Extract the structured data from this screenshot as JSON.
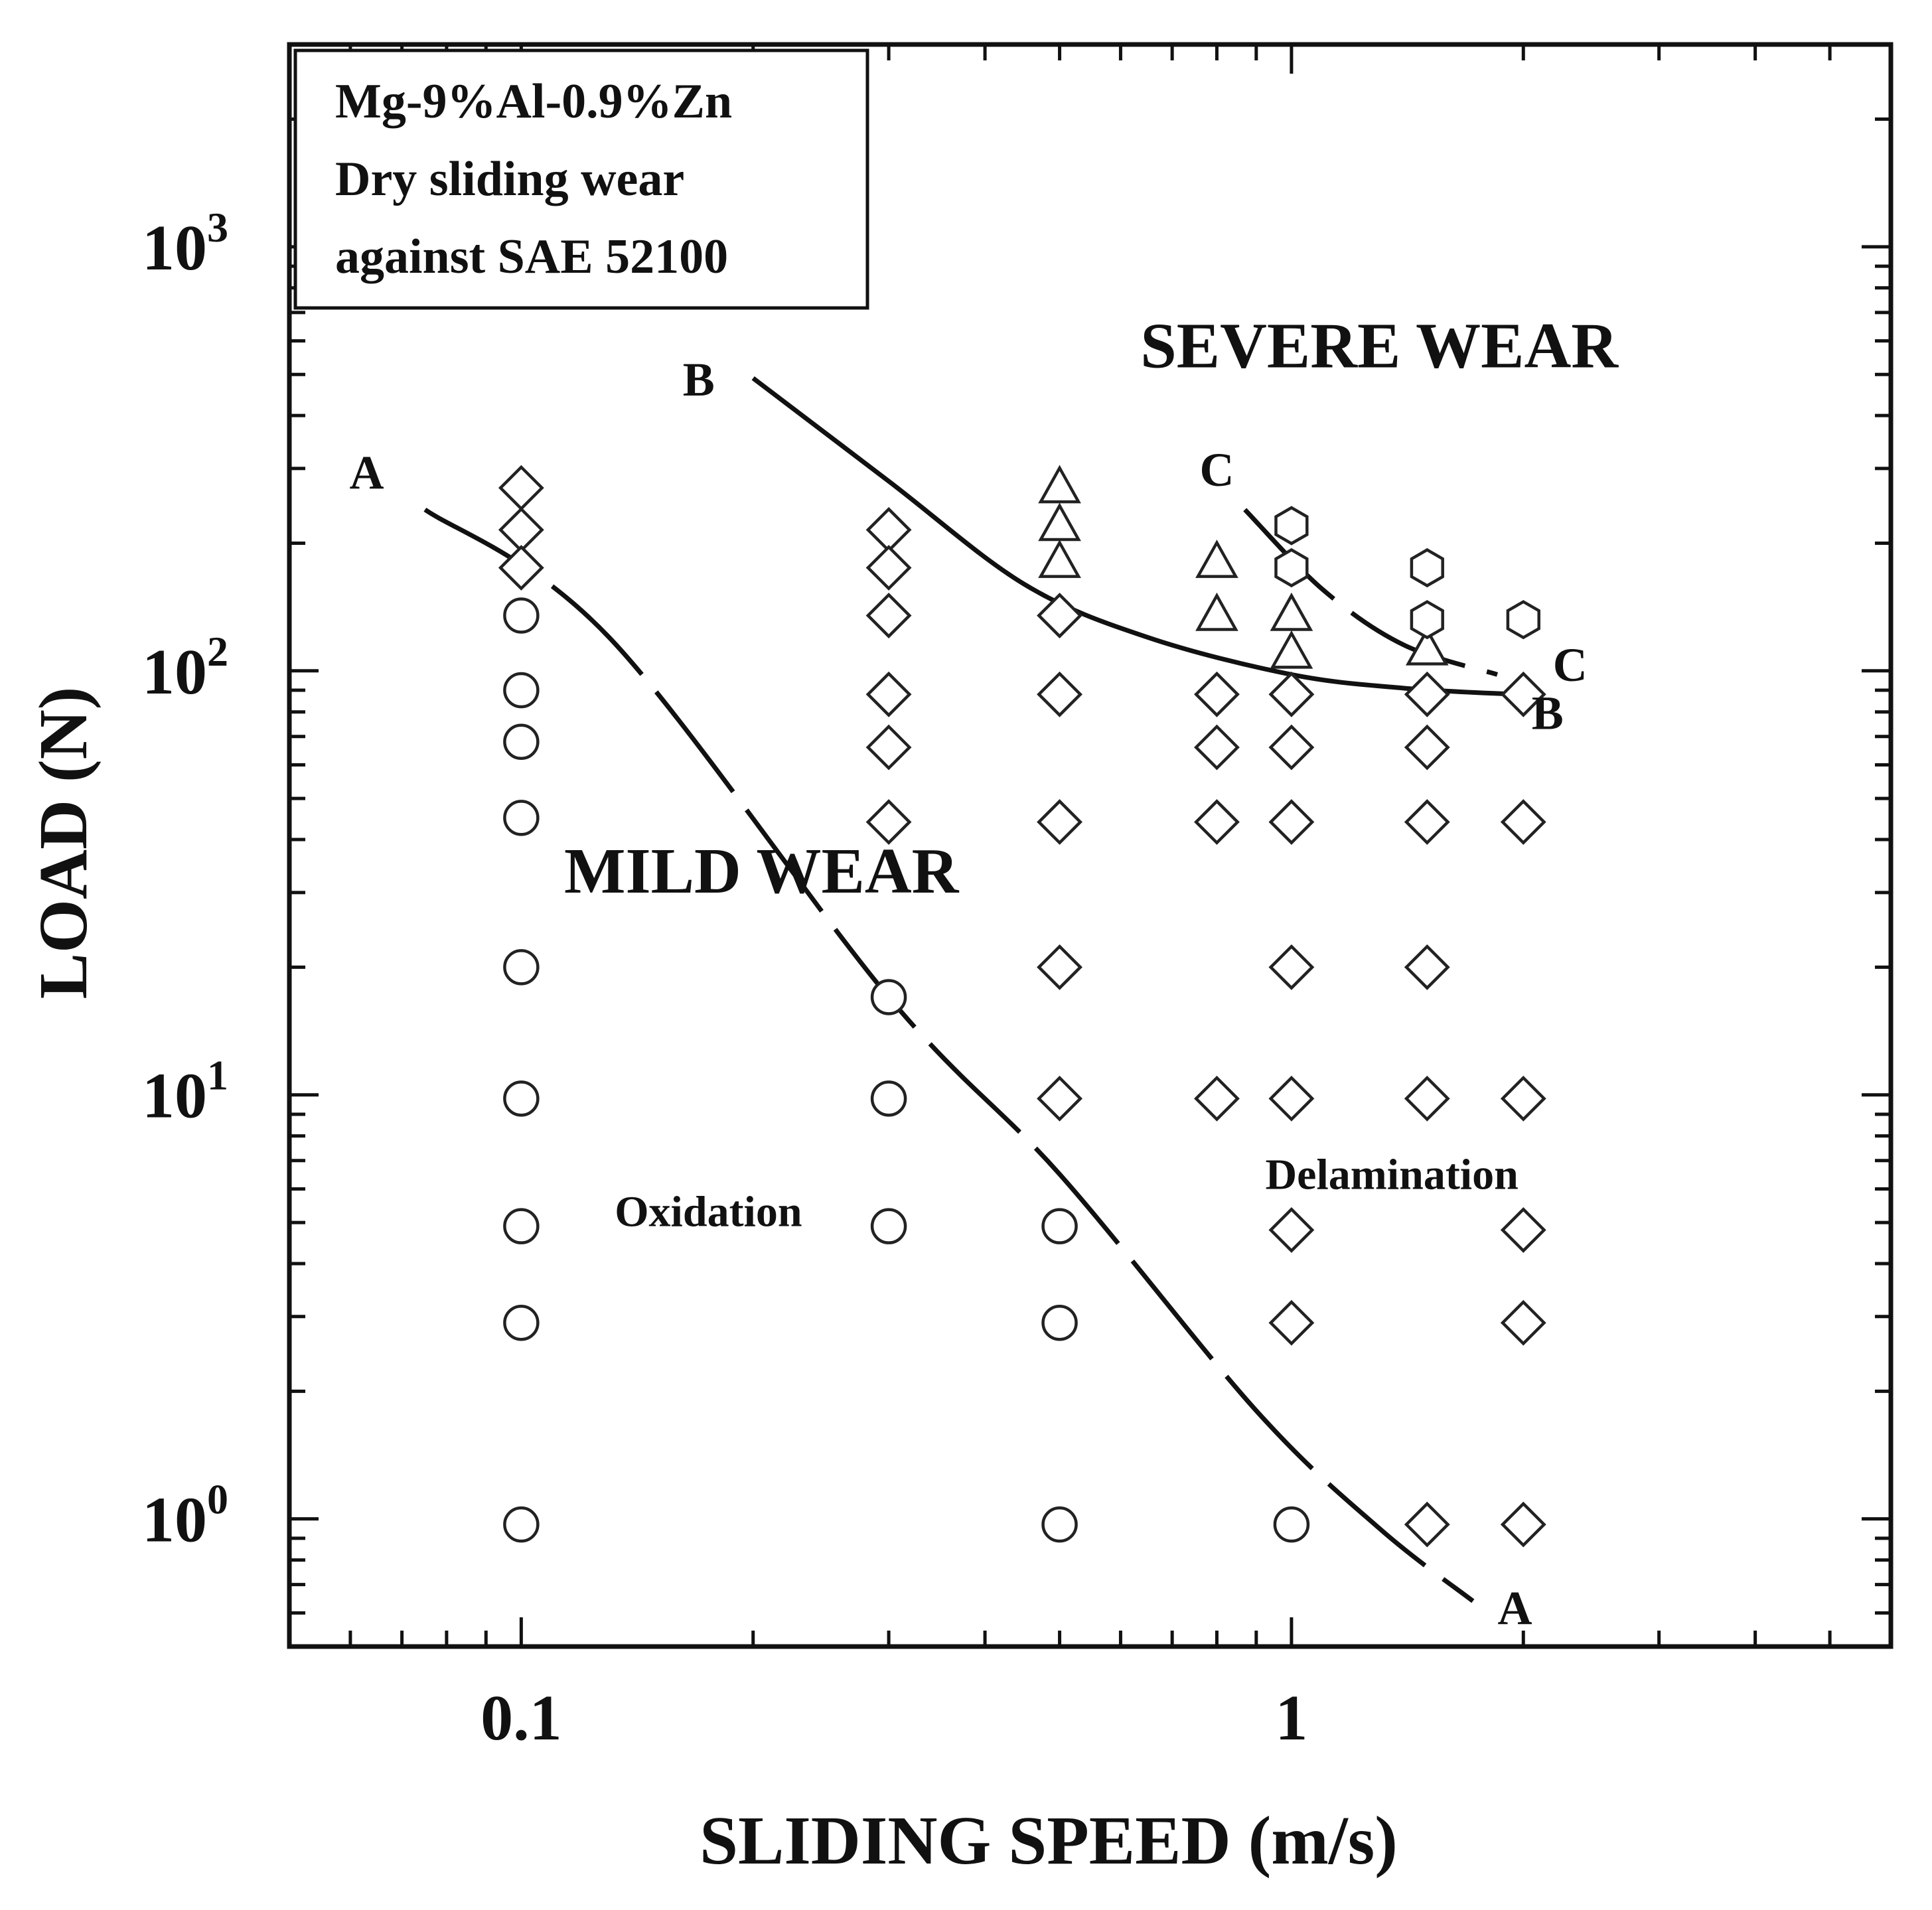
{
  "chart_data": {
    "type": "scatter",
    "title": "",
    "xlabel": "SLIDING SPEED  (m/s)",
    "ylabel": "LOAD (N)",
    "xscale": "log",
    "yscale": "log",
    "xlim": [
      0.05,
      6
    ],
    "ylim": [
      0.5,
      3000
    ],
    "x_tick_labels": [
      {
        "value": 0.1,
        "label": "0.1"
      },
      {
        "value": 1,
        "label": "1"
      }
    ],
    "y_tick_labels": [
      {
        "value": 1,
        "base": "10",
        "exp": "0"
      },
      {
        "value": 10,
        "base": "10",
        "exp": "1"
      },
      {
        "value": 100,
        "base": "10",
        "exp": "2"
      },
      {
        "value": 1000,
        "base": "10",
        "exp": "3"
      }
    ],
    "info_box": [
      "Mg-9%Al-0.9%Zn",
      "Dry sliding wear",
      "against SAE 52100"
    ],
    "region_labels": [
      {
        "text": "SEVERE WEAR",
        "x": 1.3,
        "y": 520,
        "size": "large"
      },
      {
        "text": "MILD WEAR",
        "x": 0.205,
        "y": 30,
        "size": "large"
      },
      {
        "text": "Oxidation",
        "x": 0.175,
        "y": 4.9,
        "size": "small"
      },
      {
        "text": "Delamination",
        "x": 1.35,
        "y": 6.0,
        "size": "small"
      }
    ],
    "boundaries": [
      {
        "name": "A",
        "style": "dashed",
        "x": [
          0.075,
          0.13,
          0.3,
          0.5,
          0.9,
          1.3,
          1.72
        ],
        "y": [
          240,
          120,
          17,
          6.5,
          1.8,
          0.95,
          0.64
        ],
        "labels": [
          {
            "text": "A",
            "x": 0.063,
            "y": 295
          },
          {
            "text": "A",
            "x": 1.95,
            "y": 0.62
          }
        ]
      },
      {
        "name": "B",
        "style": "solid",
        "x": [
          0.2,
          0.3,
          0.45,
          0.65,
          1.0,
          1.4,
          1.95
        ],
        "y": [
          490,
          280,
          160,
          120,
          98,
          91,
          88
        ],
        "labels": [
          {
            "text": "B",
            "x": 0.17,
            "y": 490
          },
          {
            "text": "B",
            "x": 2.15,
            "y": 80
          }
        ]
      },
      {
        "name": "C",
        "style": "dashed",
        "x": [
          0.87,
          1.1,
          1.4,
          1.85
        ],
        "y": [
          240,
          155,
          115,
          98
        ],
        "labels": [
          {
            "text": "C",
            "x": 0.8,
            "y": 300
          },
          {
            "text": "C",
            "x": 2.3,
            "y": 104
          }
        ]
      }
    ],
    "series": [
      {
        "name": "Oxidation (mild wear)",
        "marker": "circle",
        "points": [
          [
            0.1,
            135
          ],
          [
            0.1,
            90
          ],
          [
            0.1,
            68
          ],
          [
            0.1,
            45
          ],
          [
            0.1,
            20
          ],
          [
            0.1,
            9.8
          ],
          [
            0.1,
            4.9
          ],
          [
            0.1,
            2.9
          ],
          [
            0.1,
            0.97
          ],
          [
            0.3,
            17
          ],
          [
            0.3,
            9.8
          ],
          [
            0.3,
            4.9
          ],
          [
            0.5,
            4.9
          ],
          [
            0.5,
            2.9
          ],
          [
            0.5,
            0.97
          ],
          [
            1,
            0.97
          ]
        ]
      },
      {
        "name": "Delamination",
        "marker": "diamond",
        "points": [
          [
            0.1,
            270
          ],
          [
            0.1,
            215
          ],
          [
            0.1,
            175
          ],
          [
            0.3,
            215
          ],
          [
            0.3,
            175
          ],
          [
            0.3,
            135
          ],
          [
            0.3,
            88
          ],
          [
            0.3,
            66
          ],
          [
            0.3,
            44
          ],
          [
            0.5,
            135
          ],
          [
            0.5,
            88
          ],
          [
            0.5,
            44
          ],
          [
            0.5,
            20
          ],
          [
            0.5,
            9.8
          ],
          [
            0.8,
            88
          ],
          [
            0.8,
            66
          ],
          [
            0.8,
            44
          ],
          [
            0.8,
            9.8
          ],
          [
            1,
            88
          ],
          [
            1,
            66
          ],
          [
            1,
            44
          ],
          [
            1,
            20
          ],
          [
            1,
            9.8
          ],
          [
            1,
            4.8
          ],
          [
            1,
            2.9
          ],
          [
            1.5,
            88
          ],
          [
            1.5,
            66
          ],
          [
            1.5,
            44
          ],
          [
            1.5,
            20
          ],
          [
            1.5,
            9.8
          ],
          [
            1.5,
            0.97
          ],
          [
            2,
            88
          ],
          [
            2,
            44
          ],
          [
            2,
            9.8
          ],
          [
            2,
            4.8
          ],
          [
            2,
            2.9
          ],
          [
            2,
            0.97
          ]
        ]
      },
      {
        "name": "Severe wear (triangles)",
        "marker": "triangle",
        "points": [
          [
            0.5,
            270
          ],
          [
            0.5,
            220
          ],
          [
            0.5,
            180
          ],
          [
            0.8,
            180
          ],
          [
            0.8,
            135
          ],
          [
            1,
            135
          ],
          [
            1,
            110
          ],
          [
            1.5,
            112
          ]
        ]
      },
      {
        "name": "Severe wear (hexagons)",
        "marker": "hexagon",
        "points": [
          [
            1,
            220
          ],
          [
            1,
            175
          ],
          [
            1.5,
            175
          ],
          [
            1.5,
            132
          ],
          [
            2,
            132
          ]
        ]
      }
    ]
  }
}
